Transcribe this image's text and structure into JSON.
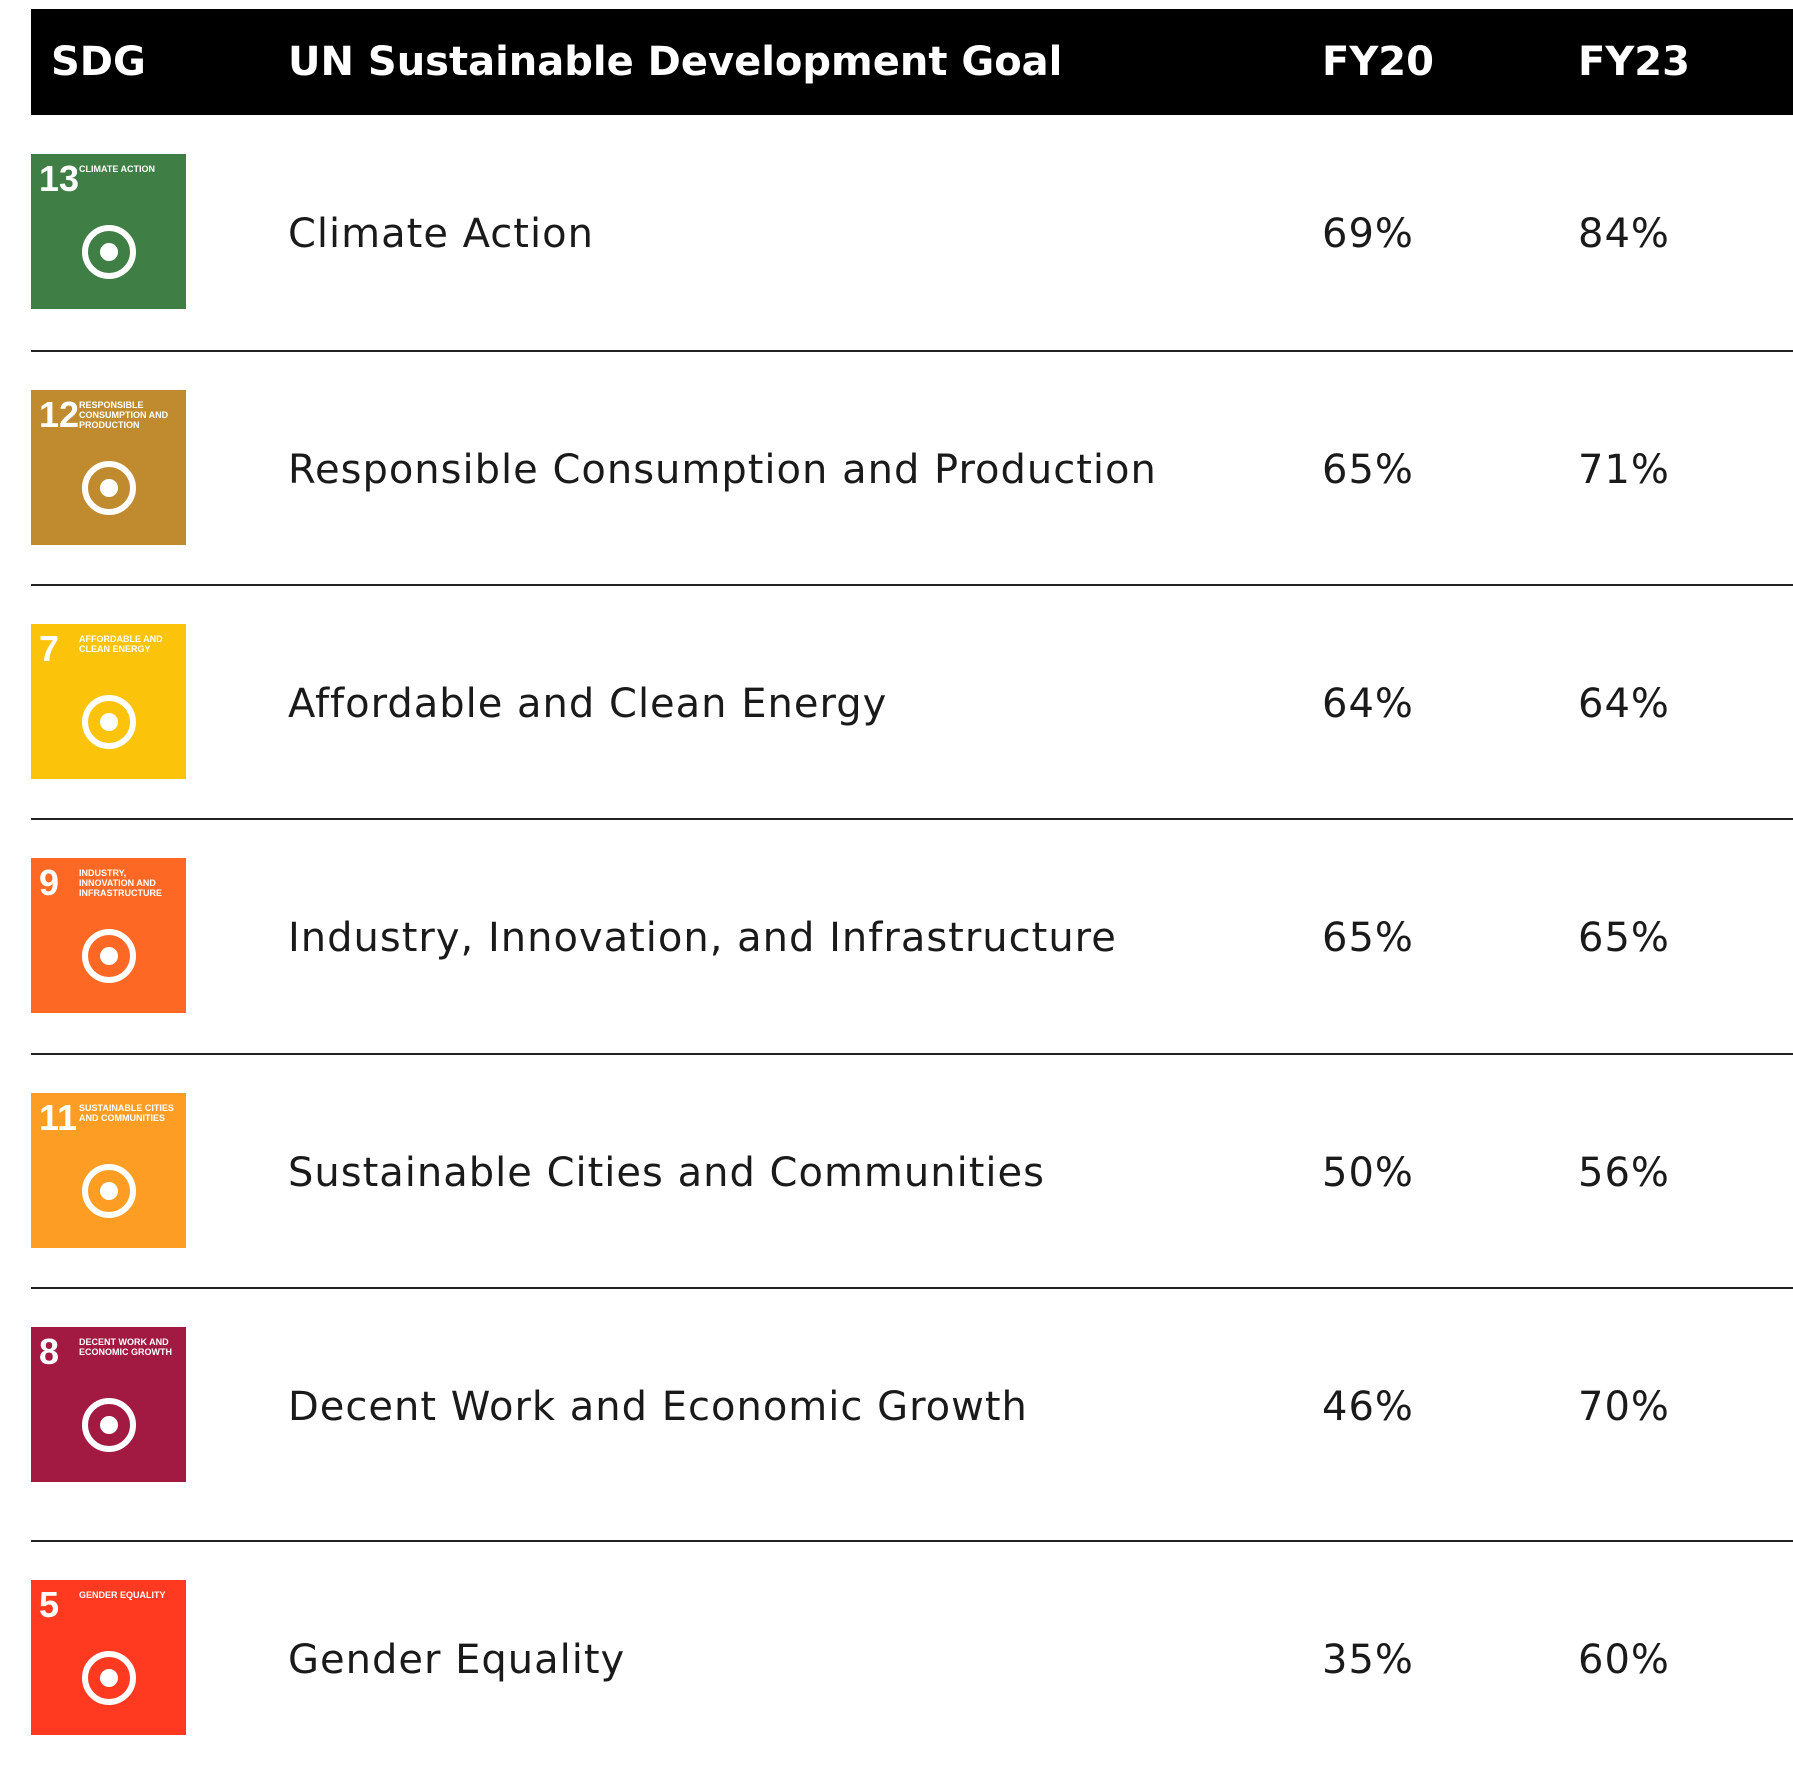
{
  "header": {
    "columns": [
      "SDG",
      "UN Sustainable Development Goal",
      "FY20",
      "FY23"
    ]
  },
  "table": {
    "rows": [
      {
        "icon": {
          "number": "13",
          "label": "CLIMATE ACTION",
          "color": "#3f7e44"
        },
        "goal": "Climate Action",
        "fy20": "69%",
        "fy23": "84%"
      },
      {
        "icon": {
          "number": "12",
          "label": "RESPONSIBLE CONSUMPTION AND PRODUCTION",
          "color": "#bf8b2e"
        },
        "goal": "Responsible Consumption and Production",
        "fy20": "65%",
        "fy23": "71%"
      },
      {
        "icon": {
          "number": "7",
          "label": "AFFORDABLE AND CLEAN ENERGY",
          "color": "#fcc30b"
        },
        "goal": "Affordable and Clean Energy",
        "fy20": "64%",
        "fy23": "64%"
      },
      {
        "icon": {
          "number": "9",
          "label": "INDUSTRY, INNOVATION AND INFRASTRUCTURE",
          "color": "#fd6925"
        },
        "goal": "Industry, Innovation, and Infrastructure",
        "fy20": "65%",
        "fy23": "65%"
      },
      {
        "icon": {
          "number": "11",
          "label": "SUSTAINABLE CITIES AND COMMUNITIES",
          "color": "#fd9d24"
        },
        "goal": "Sustainable Cities and Communities",
        "fy20": "50%",
        "fy23": "56%"
      },
      {
        "icon": {
          "number": "8",
          "label": "DECENT WORK AND ECONOMIC GROWTH",
          "color": "#a21942"
        },
        "goal": "Decent Work and Economic Growth",
        "fy20": "46%",
        "fy23": "70%"
      },
      {
        "icon": {
          "number": "5",
          "label": "GENDER EQUALITY",
          "color": "#ff3a21"
        },
        "goal": "Gender Equality",
        "fy20": "35%",
        "fy23": "60%"
      }
    ]
  }
}
